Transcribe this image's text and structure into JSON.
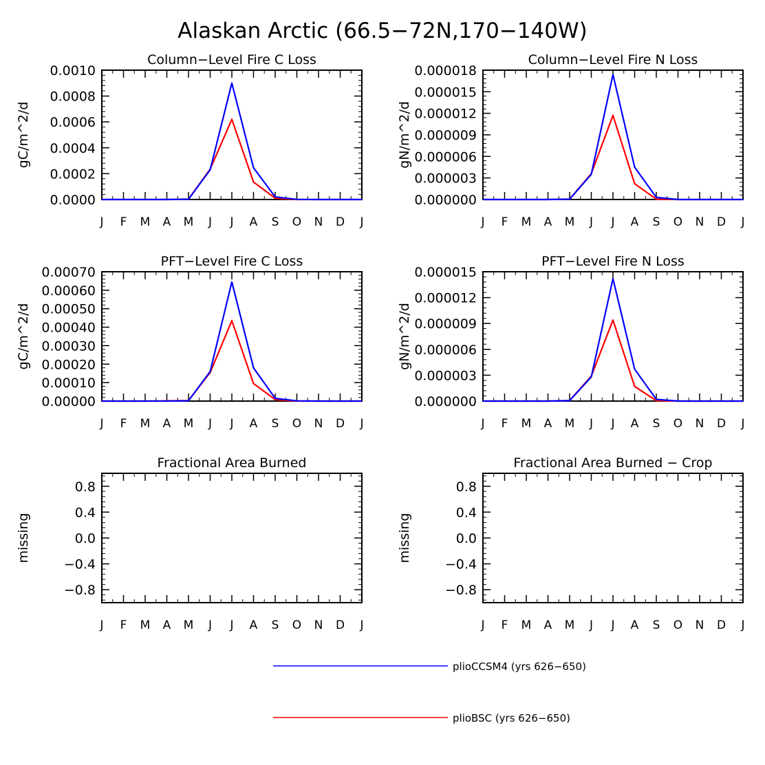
{
  "figure": {
    "title": "Alaskan Arctic (66.5−72N,170−140W)"
  },
  "legend": [
    {
      "label": "plioCCSM4 (yrs 626−650)",
      "color": "#0000ff"
    },
    {
      "label": "plioBSC (yrs 626−650)",
      "color": "#ff0000"
    }
  ],
  "chart_data": [
    {
      "type": "line",
      "title": "Column−Level Fire C Loss",
      "ylabel": "gC/m^2/d",
      "categories": [
        "J",
        "F",
        "M",
        "A",
        "M",
        "J",
        "J",
        "A",
        "S",
        "O",
        "N",
        "D",
        "J"
      ],
      "ylim": [
        0,
        0.001
      ],
      "yticks": [
        "0.0000",
        "0.0002",
        "0.0004",
        "0.0006",
        "0.0008",
        "0.0010"
      ],
      "series": [
        {
          "name": "plioCCSM4 (yrs 626−650)",
          "color": "#0000ff",
          "values": [
            0,
            0,
            0,
            0,
            2e-06,
            0.00023,
            0.0009,
            0.000245,
            2e-05,
            1e-06,
            0,
            0,
            0
          ]
        },
        {
          "name": "plioBSC (yrs 626−650)",
          "color": "#ff0000",
          "values": [
            0,
            0,
            0,
            0,
            3e-06,
            0.000235,
            0.00062,
            0.000135,
            1e-05,
            0,
            0,
            0,
            0
          ]
        }
      ]
    },
    {
      "type": "line",
      "title": "Column−Level Fire N Loss",
      "ylabel": "gN/m^2/d",
      "categories": [
        "J",
        "F",
        "M",
        "A",
        "M",
        "J",
        "J",
        "A",
        "S",
        "O",
        "N",
        "D",
        "J"
      ],
      "ylim": [
        0,
        1.8e-05
      ],
      "yticks": [
        "0.000000",
        "0.000003",
        "0.000006",
        "0.000009",
        "0.000012",
        "0.000015",
        "0.000018"
      ],
      "series": [
        {
          "name": "plioCCSM4 (yrs 626−650)",
          "color": "#0000ff",
          "values": [
            0,
            0,
            0,
            0,
            5e-08,
            3.5e-06,
            1.74e-05,
            4.5e-06,
            3e-07,
            0,
            0,
            0,
            0
          ]
        },
        {
          "name": "plioBSC (yrs 626−650)",
          "color": "#ff0000",
          "values": [
            0,
            0,
            0,
            0,
            6e-08,
            3.6e-06,
            1.17e-05,
            2.2e-06,
            5e-08,
            0,
            0,
            0,
            0
          ]
        }
      ]
    },
    {
      "type": "line",
      "title": "PFT−Level Fire C Loss",
      "ylabel": "gC/m^2/d",
      "categories": [
        "J",
        "F",
        "M",
        "A",
        "M",
        "J",
        "J",
        "A",
        "S",
        "O",
        "N",
        "D",
        "J"
      ],
      "ylim": [
        0,
        0.0007
      ],
      "yticks": [
        "0.00000",
        "0.00010",
        "0.00020",
        "0.00030",
        "0.00040",
        "0.00050",
        "0.00060",
        "0.00070"
      ],
      "series": [
        {
          "name": "plioCCSM4 (yrs 626−650)",
          "color": "#0000ff",
          "values": [
            0,
            0,
            0,
            0,
            2e-06,
            0.00016,
            0.000645,
            0.00018,
            1.5e-05,
            1e-06,
            0,
            0,
            0
          ]
        },
        {
          "name": "plioBSC (yrs 626−650)",
          "color": "#ff0000",
          "values": [
            0,
            0,
            0,
            1e-06,
            3e-06,
            0.000155,
            0.000435,
            9.5e-05,
            8e-06,
            0,
            0,
            0,
            0
          ]
        }
      ]
    },
    {
      "type": "line",
      "title": "PFT−Level Fire N Loss",
      "ylabel": "gN/m^2/d",
      "categories": [
        "J",
        "F",
        "M",
        "A",
        "M",
        "J",
        "J",
        "A",
        "S",
        "O",
        "N",
        "D",
        "J"
      ],
      "ylim": [
        0,
        1.5e-05
      ],
      "yticks": [
        "0.000000",
        "0.000003",
        "0.000006",
        "0.000009",
        "0.000012",
        "0.000015"
      ],
      "series": [
        {
          "name": "plioCCSM4 (yrs 626−650)",
          "color": "#0000ff",
          "values": [
            0,
            0,
            0,
            0,
            5e-08,
            2.8e-06,
            1.42e-05,
            3.7e-06,
            2e-07,
            0,
            0,
            0,
            0
          ]
        },
        {
          "name": "plioBSC (yrs 626−650)",
          "color": "#ff0000",
          "values": [
            0,
            0,
            0,
            0,
            6e-08,
            2.9e-06,
            9.4e-06,
            1.7e-06,
            5e-08,
            0,
            0,
            0,
            0
          ]
        }
      ]
    },
    {
      "type": "line",
      "title": "Fractional Area Burned",
      "ylabel": "missing",
      "categories": [
        "J",
        "F",
        "M",
        "A",
        "M",
        "J",
        "J",
        "A",
        "S",
        "O",
        "N",
        "D",
        "J"
      ],
      "ylim": [
        -1,
        1
      ],
      "yticks": [
        "−0.8",
        "−0.4",
        "0.0",
        "0.4",
        "0.8"
      ],
      "series": []
    },
    {
      "type": "line",
      "title": "Fractional Area Burned − Crop",
      "ylabel": "missing",
      "categories": [
        "J",
        "F",
        "M",
        "A",
        "M",
        "J",
        "J",
        "A",
        "S",
        "O",
        "N",
        "D",
        "J"
      ],
      "ylim": [
        -1,
        1
      ],
      "yticks": [
        "−0.8",
        "−0.4",
        "0.0",
        "0.4",
        "0.8"
      ],
      "series": []
    }
  ]
}
